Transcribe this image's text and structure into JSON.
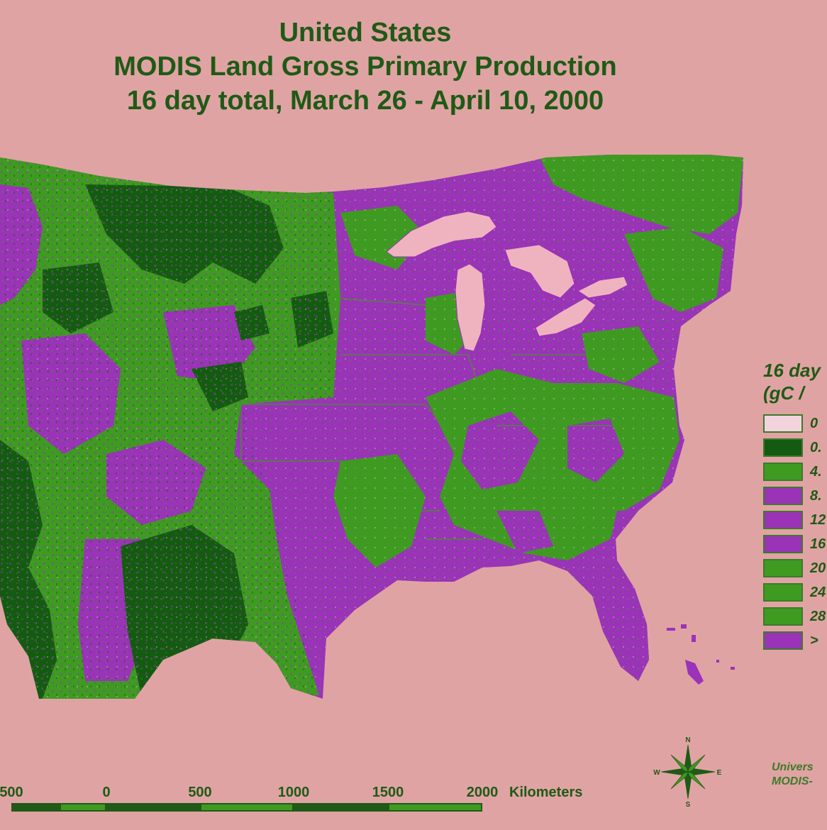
{
  "title": {
    "line1": "United States",
    "line2": "MODIS Land Gross Primary Production",
    "line3": "16 day total, March 26 - April 10, 2000"
  },
  "legend": {
    "title_line1": "16 day",
    "title_line2": "(gC /",
    "items": [
      {
        "label": "0",
        "color": "#f2d4de"
      },
      {
        "label": "0.",
        "color": "#155a12"
      },
      {
        "label": "4.",
        "color": "#3f9a22"
      },
      {
        "label": "8.",
        "color": "#9a33b8"
      },
      {
        "label": "12",
        "color": "#9a33b8"
      },
      {
        "label": "16",
        "color": "#9a33b8"
      },
      {
        "label": "20",
        "color": "#3f9a22"
      },
      {
        "label": "24",
        "color": "#3f9a22"
      },
      {
        "label": "28",
        "color": "#3f9a22"
      },
      {
        "label": ">",
        "color": "#9a33b8"
      }
    ]
  },
  "scale": {
    "labels": [
      "500",
      "0",
      "500",
      "1000",
      "1500",
      "2000"
    ],
    "units": "Kilometers"
  },
  "compass": {
    "n": "N",
    "s": "S",
    "e": "E",
    "w": "W"
  },
  "credit": {
    "line1": "Univers",
    "line2": "MODIS-"
  },
  "colors": {
    "background": "#e0a3a3",
    "forest_dark": "#155a12",
    "grass_green": "#3f9a22",
    "crop_purple": "#9a33b8",
    "water": "#efb3c0",
    "text_green": "#1f5a16"
  }
}
